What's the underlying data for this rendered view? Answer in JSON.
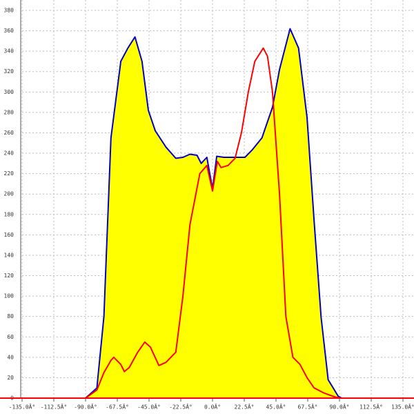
{
  "chart_data": {
    "type": "area-line",
    "xlim": [
      -135,
      135
    ],
    "ylim": [
      0,
      380
    ],
    "xticks": [
      {
        "value": -135,
        "label": "-135.0Â°"
      },
      {
        "value": -112.5,
        "label": "-112.5Â°"
      },
      {
        "value": -90,
        "label": "-90.0Â°"
      },
      {
        "value": -67.5,
        "label": "-67.5Â°"
      },
      {
        "value": -45,
        "label": "-45.0Â°"
      },
      {
        "value": -22.5,
        "label": "-22.5Â°"
      },
      {
        "value": 0,
        "label": "0.0Â°"
      },
      {
        "value": 22.5,
        "label": "22.5Â°"
      },
      {
        "value": 45,
        "label": "45.0Â°"
      },
      {
        "value": 67.5,
        "label": "67.5Â°"
      },
      {
        "value": 90,
        "label": "90.0Â°"
      },
      {
        "value": 112.5,
        "label": "112.5Â°"
      },
      {
        "value": 135,
        "label": "135.0Â°"
      }
    ],
    "yticks": [
      0,
      20,
      40,
      60,
      80,
      100,
      120,
      140,
      160,
      180,
      200,
      220,
      240,
      260,
      280,
      300,
      320,
      340,
      360,
      380
    ],
    "grid": true,
    "baseline_color": "#ff0000",
    "series": [
      {
        "color": "#0000cc",
        "fill": "#ffff00",
        "x": [
          -90,
          -82,
          -77,
          -72,
          -65,
          -60,
          -55,
          -50,
          -45.5,
          -40.6,
          -33,
          -26,
          -21,
          -16,
          -11,
          -8,
          -4,
          0,
          3,
          8,
          16,
          23,
          28,
          35,
          42.5,
          47.5,
          55,
          61,
          67,
          72,
          77,
          82,
          89,
          91.5
        ],
        "values": [
          0,
          10,
          80,
          255,
          330,
          343,
          354,
          330,
          282,
          262,
          246,
          235,
          236,
          239,
          238,
          230,
          236,
          205,
          237,
          236,
          236,
          236,
          243,
          255,
          285,
          322,
          362,
          343,
          275,
          174,
          79,
          18,
          2,
          0
        ]
      },
      {
        "color": "#ff0000",
        "x": [
          -90,
          -82,
          -77,
          -72,
          -70,
          -65,
          -62.5,
          -59,
          -53,
          -48,
          -44,
          -38,
          -33,
          -26,
          -21,
          -16,
          -9,
          -4,
          0,
          3.4,
          6,
          11,
          16,
          20.5,
          25.4,
          30,
          36,
          39,
          42.5,
          47.5,
          52,
          57,
          62,
          67,
          72,
          79,
          87,
          91.5
        ],
        "values": [
          0,
          8,
          25,
          37,
          40,
          33,
          26,
          30,
          45,
          55,
          50,
          32,
          35,
          45,
          100,
          170,
          220,
          228,
          203,
          232,
          226,
          228,
          235,
          260,
          300,
          330,
          343,
          335,
          300,
          200,
          80,
          40,
          33,
          20,
          10,
          5,
          1,
          0
        ]
      }
    ]
  }
}
